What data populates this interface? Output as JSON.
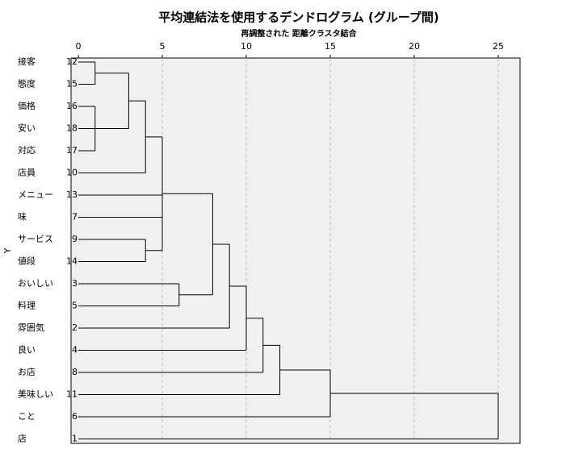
{
  "chart_data": {
    "type": "dendrogram",
    "title": "平均連結法を使用するデンドログラム (グループ間)",
    "subtitle": "再調整された 距離クラスタ結合",
    "y_label": "Y",
    "xlim": [
      0,
      25
    ],
    "xticks": [
      0,
      5,
      10,
      15,
      20,
      25
    ],
    "grid": true,
    "leaves": [
      {
        "label": "接客",
        "case": 12
      },
      {
        "label": "態度",
        "case": 15
      },
      {
        "label": "価格",
        "case": 16
      },
      {
        "label": "安い",
        "case": 18
      },
      {
        "label": "対応",
        "case": 17
      },
      {
        "label": "店員",
        "case": 10
      },
      {
        "label": "メニュー",
        "case": 13
      },
      {
        "label": "味",
        "case": 7
      },
      {
        "label": "サービス",
        "case": 9
      },
      {
        "label": "値段",
        "case": 14
      },
      {
        "label": "おいしい",
        "case": 3
      },
      {
        "label": "料理",
        "case": 5
      },
      {
        "label": "雰囲気",
        "case": 2
      },
      {
        "label": "良い",
        "case": 4
      },
      {
        "label": "お店",
        "case": 8
      },
      {
        "label": "美味しい",
        "case": 11
      },
      {
        "label": "こと",
        "case": 6
      },
      {
        "label": "店",
        "case": 1
      }
    ],
    "merges": [
      {
        "items": [
          0,
          1
        ],
        "distance": 1
      },
      {
        "items": [
          2,
          3,
          4
        ],
        "distance": 1
      },
      {
        "items": [
          18,
          19
        ],
        "distance": 3
      },
      {
        "items": [
          20,
          5
        ],
        "distance": 4
      },
      {
        "items": [
          8,
          9
        ],
        "distance": 4
      },
      {
        "items": [
          21,
          6,
          7,
          22
        ],
        "distance": 5
      },
      {
        "items": [
          10,
          11
        ],
        "distance": 6
      },
      {
        "items": [
          23,
          24
        ],
        "distance": 8
      },
      {
        "items": [
          25,
          12
        ],
        "distance": 9
      },
      {
        "items": [
          26,
          13
        ],
        "distance": 10
      },
      {
        "items": [
          27,
          14
        ],
        "distance": 11
      },
      {
        "items": [
          28,
          15
        ],
        "distance": 12
      },
      {
        "items": [
          29,
          16
        ],
        "distance": 15
      },
      {
        "items": [
          30,
          17
        ],
        "distance": 25
      }
    ]
  }
}
